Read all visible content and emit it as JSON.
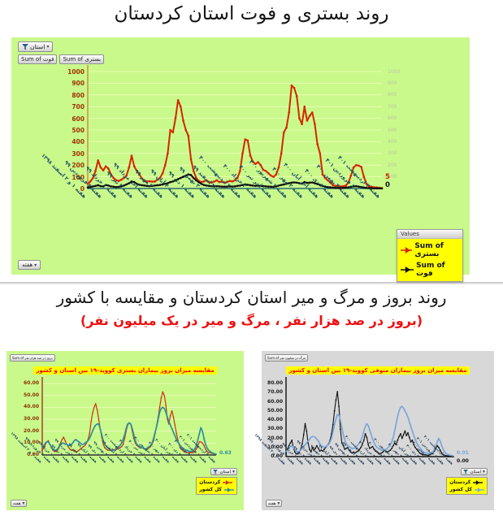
{
  "page": {
    "title_top": "روند بستری و فوت استان کردستان",
    "section2_title": "روند بروز و مرگ و میر استان کردستان و مقایسه با کشور",
    "section2_subtitle": "(بروز در صد هزار نفر ، مرگ و میر در یک میلیون نفر)",
    "colors": {
      "panel_green": "#c9f98b",
      "panel_gray": "#d8d8d8",
      "legend_yellow": "#ffff00",
      "subtitle_red": "#ee1111",
      "hospitalization_red": "#d42600",
      "death_black": "#111111",
      "country_teal": "#2d8fa0",
      "country_blue": "#7ba6d9"
    }
  },
  "pivot_controls": {
    "province_filter_label": "استان",
    "week_field_label": "هفته",
    "value_field_buttons": [
      "Sum of فوت",
      "Sum of بستری"
    ],
    "small_field_button_left_chart": "Sum of بروز در صد هزار نفر",
    "small_field_button_right_chart": "Sum of مرگ در میلیون نفر"
  },
  "chart_data": [
    {
      "type": "line",
      "title": "",
      "ylim": [
        0,
        1000
      ],
      "ytick_step": 100,
      "ytick_labels": [
        "0",
        "100",
        "200",
        "300",
        "400",
        "500",
        "600",
        "700",
        "800",
        "900",
        "1000"
      ],
      "right_axis_labels": [
        "100",
        "200",
        "300",
        "400",
        "500",
        "600",
        "700",
        "800",
        "900",
        "1000"
      ],
      "categories": [
        "هفته ۱ و ۲ اسفند ۱۳۹۸",
        "هفته ۴ فروردین ۹۹",
        "هفته ۱ خرداد ۹۹",
        "هفته ۳ تیر ۹۹",
        "هفته آخر مرداد ۹۹",
        "هفته ۲ مهر ۹۹",
        "هفته ۴ آبان ۹۹",
        "هفته ۱ دی ۹۹",
        "هفته ۳ بهمن ۹۹",
        "هفته ۴ اسفند ۹۹",
        "هفته ۲ اردیبهشت ۴۰۰",
        "هفته ۳ خرداد ۴۰۰",
        "هفته آخر تیر ۴۰۰",
        "هفته ۲ شهریور ۴۰۰",
        "هفته ۳ مهر ۴۰۰",
        "هفته آخر آبان ۴۰۰",
        "هفته ۲ دی ۴۰۰",
        "هفته ۴ بهمن ۴۰۰",
        "هفته ۱ فروردین ۴۰۱",
        "هفته ۳ اردیبهشت ۴۰۱"
      ],
      "legend": {
        "header": "Values",
        "items": [
          {
            "label": "Sum of بستری",
            "color": "#d42600"
          },
          {
            "label": "Sum of فوت",
            "color": "#111111"
          }
        ]
      },
      "series": [
        {
          "name": "Sum of بستری",
          "color": "#d42600",
          "end_label": "5",
          "values": [
            40,
            60,
            90,
            150,
            240,
            180,
            155,
            190,
            170,
            120,
            90,
            70,
            65,
            75,
            90,
            110,
            180,
            280,
            190,
            150,
            120,
            85,
            65,
            60,
            62,
            58,
            60,
            75,
            90,
            130,
            200,
            300,
            500,
            480,
            600,
            755,
            700,
            580,
            500,
            450,
            250,
            150,
            90,
            65,
            55,
            60,
            70,
            55,
            50,
            60,
            70,
            55,
            60,
            50,
            55,
            65,
            60,
            70,
            90,
            150,
            300,
            420,
            410,
            280,
            230,
            210,
            225,
            200,
            160,
            150,
            130,
            110,
            100,
            120,
            180,
            300,
            480,
            520,
            650,
            880,
            860,
            790,
            600,
            550,
            700,
            580,
            620,
            650,
            550,
            380,
            300,
            120,
            90,
            70,
            50,
            30,
            22,
            20,
            18,
            20,
            25,
            50,
            110,
            180,
            200,
            195,
            185,
            100,
            40,
            20,
            15,
            10,
            8,
            6,
            5
          ]
        },
        {
          "name": "Sum of فوت",
          "color": "#111111",
          "end_label": "0",
          "values": [
            8,
            12,
            18,
            22,
            28,
            20,
            18,
            30,
            25,
            18,
            15,
            12,
            14,
            18,
            25,
            35,
            45,
            60,
            55,
            40,
            32,
            28,
            25,
            22,
            20,
            22,
            25,
            28,
            30,
            35,
            40,
            45,
            55,
            60,
            70,
            80,
            90,
            100,
            110,
            120,
            115,
            90,
            70,
            55,
            40,
            30,
            25,
            22,
            20,
            18,
            20,
            18,
            16,
            15,
            16,
            18,
            17,
            18,
            22,
            25,
            30,
            35,
            32,
            28,
            25,
            22,
            24,
            22,
            20,
            18,
            16,
            15,
            14,
            18,
            25,
            30,
            35,
            40,
            45,
            50,
            52,
            50,
            45,
            42,
            55,
            48,
            50,
            52,
            45,
            38,
            30,
            22,
            16,
            12,
            10,
            8,
            6,
            5,
            5,
            6,
            8,
            10,
            14,
            18,
            20,
            16,
            12,
            8,
            5,
            4,
            3,
            2,
            1,
            1,
            0
          ]
        }
      ]
    },
    {
      "type": "line",
      "title": "مقایسه میزان بروز بیماران بستری کووید-۱۹ بین استان و کشور",
      "ylim": [
        0,
        60
      ],
      "ytick_step": 10,
      "ytick_labels": [
        "0.00",
        "10.00",
        "20.00",
        "30.00",
        "40.00",
        "50.00",
        "60.00"
      ],
      "categories": [
        "هفته ۱ و ۲ اسفند ۱۳۹۸",
        "هفته ۴ فروردین ۹۹",
        "هفته ۱ خرداد ۹۹",
        "هفته ۳ تیر ۹۹",
        "هفته آخر مرداد ۹۹",
        "هفته ۲ مهر ۹۹",
        "هفته ۴ آبان ۹۹",
        "هفته ۱ دی ۹۹",
        "هفته ۳ بهمن ۹۹",
        "هفته ۴ اسفند ۹۹",
        "هفته ۲ اردیبهشت ۴۰۰",
        "هفته ۳ خرداد ۴۰۰",
        "هفته آخر تیر ۴۰۰",
        "هفته ۲ شهریور ۴۰۰",
        "هفته ۳ مهر ۴۰۰",
        "هفته آخر آبان ۴۰۰",
        "هفته ۲ دی ۴۰۰",
        "هفته ۴ بهمن ۴۰۰",
        "هفته ۱ فروردین ۴۰۱",
        "هفته ۳ اردیبهشت ۴۰۱"
      ],
      "legend": {
        "items": [
          {
            "label": "کردستان",
            "color": "#cc3311"
          },
          {
            "label": "کل کشور",
            "color": "#2d8fa0"
          }
        ]
      },
      "series": [
        {
          "name": "کردستان",
          "color": "#cc3311",
          "values": [
            4,
            6,
            9,
            11,
            12,
            9,
            6,
            4,
            3,
            3,
            4,
            6,
            10,
            13,
            15,
            12,
            9,
            7,
            5,
            4,
            4,
            4,
            3,
            3,
            4,
            5,
            6,
            7,
            8,
            10,
            13,
            18,
            28,
            35,
            40,
            43,
            38,
            30,
            22,
            15,
            9,
            6,
            5,
            4,
            4,
            4,
            5,
            4,
            4,
            5,
            6,
            6,
            7,
            9,
            14,
            20,
            25,
            27,
            26,
            20,
            14,
            10,
            8,
            7,
            6,
            6,
            6,
            5,
            5,
            5,
            6,
            7,
            9,
            12,
            18,
            25,
            32,
            40,
            48,
            53,
            50,
            42,
            30,
            26,
            33,
            37,
            32,
            25,
            18,
            12,
            8,
            5,
            4,
            3,
            3,
            2,
            2,
            2,
            2,
            2,
            3,
            5,
            8,
            11,
            11,
            10,
            8,
            5,
            3,
            2,
            2,
            1.5,
            1.2,
            1,
            0.8
          ]
        },
        {
          "name": "کل کشور",
          "color": "#2d8fa0",
          "end_label": "0.63",
          "values": [
            6,
            8,
            10,
            11,
            11,
            9,
            7,
            5,
            4,
            4,
            5,
            7,
            9,
            10,
            10,
            9,
            9,
            8,
            8,
            9,
            10,
            12,
            13,
            12,
            11,
            10,
            9,
            9,
            10,
            11,
            12,
            14,
            17,
            20,
            23,
            25,
            26,
            26,
            22,
            17,
            12,
            9,
            7,
            6,
            5,
            4,
            4,
            4,
            5,
            6,
            7,
            8,
            10,
            13,
            17,
            22,
            26,
            27,
            26,
            22,
            17,
            12,
            9,
            8,
            7,
            6,
            6,
            5,
            5,
            6,
            7,
            8,
            10,
            14,
            19,
            24,
            30,
            36,
            39,
            40,
            39,
            36,
            32,
            28,
            25,
            22,
            19,
            16,
            13,
            11,
            9,
            7,
            6,
            5,
            4,
            4,
            3,
            3,
            3,
            4,
            5,
            8,
            13,
            18,
            23,
            20,
            14,
            9,
            6,
            4,
            3,
            2,
            1.5,
            1,
            0.63
          ]
        }
      ]
    },
    {
      "type": "line",
      "title": "مقایسه میزان بروز بیماران متوفی کووید-۱۹ بین استان و کشور",
      "ylim": [
        0,
        80
      ],
      "ytick_step": 10,
      "ytick_labels": [
        "0.00",
        "10.00",
        "20.00",
        "30.00",
        "40.00",
        "50.00",
        "60.00",
        "70.00",
        "80.00"
      ],
      "categories": [
        "هفته ۱ و ۲ اسفند ۱۳۹۸",
        "هفته ۴ فروردین ۹۹",
        "هفته ۱ خرداد ۹۹",
        "هفته ۳ تیر ۹۹",
        "هفته آخر مرداد ۹۹",
        "هفته ۲ مهر ۹۹",
        "هفته ۴ آبان ۹۹",
        "هفته ۱ دی ۹۹",
        "هفته ۳ بهمن ۹۹",
        "هفته ۴ اسفند ۹۹",
        "هفته ۲ اردیبهشت ۴۰۰",
        "هفته ۳ خرداد ۴۰۰",
        "هفته آخر تیر ۴۰۰",
        "هفته ۲ شهریور ۴۰۰",
        "هفته ۳ مهر ۴۰۰",
        "هفته آخر آبان ۴۰۰",
        "هفته ۲ دی ۴۰۰",
        "هفته ۴ بهمن ۴۰۰",
        "هفته ۱ فروردین ۴۰۱",
        "هفته ۳ اردیبهشت ۴۰۱"
      ],
      "legend": {
        "items": [
          {
            "label": "کردستان",
            "color": "#111111"
          },
          {
            "label": "کل کشور",
            "color": "#7ba6d9"
          }
        ]
      },
      "series": [
        {
          "name": "کردستان",
          "color": "#111111",
          "end_label": "0.00",
          "values": [
            3,
            8,
            12,
            15,
            18,
            10,
            5,
            3,
            3,
            5,
            8,
            14,
            24,
            36,
            28,
            15,
            8,
            5,
            10,
            7,
            9,
            12,
            9,
            6,
            7,
            6,
            8,
            10,
            12,
            14,
            18,
            25,
            35,
            50,
            62,
            71,
            55,
            30,
            15,
            12,
            8,
            9,
            10,
            7,
            5,
            4,
            5,
            4,
            5,
            6,
            8,
            10,
            14,
            18,
            25,
            21,
            13,
            9,
            10,
            11,
            8,
            6,
            5,
            4,
            3,
            4,
            5,
            7,
            6,
            5,
            6,
            7,
            9,
            12,
            15,
            13,
            18,
            22,
            25,
            20,
            24,
            28,
            23,
            26,
            21,
            16,
            18,
            13,
            10,
            8,
            6,
            4,
            3,
            2,
            2,
            2,
            1.5,
            1.5,
            2,
            3,
            4,
            6,
            9,
            12,
            10,
            7,
            4,
            2,
            1.5,
            1,
            0.8,
            0.5,
            0.3,
            0.1,
            0
          ]
        },
        {
          "name": "کل کشور",
          "color": "#7ba6d9",
          "end_label": "0.91",
          "values": [
            5,
            7,
            9,
            11,
            12,
            10,
            8,
            6,
            5,
            6,
            7,
            9,
            11,
            13,
            15,
            17,
            19,
            21,
            22,
            22,
            21,
            19,
            17,
            14,
            12,
            11,
            10,
            11,
            12,
            13,
            16,
            20,
            27,
            35,
            41,
            46,
            45,
            40,
            32,
            24,
            18,
            14,
            12,
            11,
            10,
            9,
            9,
            10,
            11,
            13,
            15,
            18,
            22,
            28,
            33,
            36,
            34,
            29,
            24,
            19,
            15,
            12,
            10,
            9,
            8,
            7,
            7,
            7,
            8,
            9,
            11,
            13,
            16,
            21,
            28,
            36,
            44,
            50,
            54,
            55,
            53,
            50,
            47,
            43,
            38,
            33,
            28,
            23,
            19,
            15,
            12,
            10,
            8,
            6,
            5,
            4,
            4,
            3.5,
            3.5,
            4,
            5,
            8,
            12,
            16,
            20,
            17,
            12,
            8,
            5,
            3.5,
            2.5,
            2,
            1.5,
            1.2,
            0.91
          ]
        }
      ]
    }
  ]
}
